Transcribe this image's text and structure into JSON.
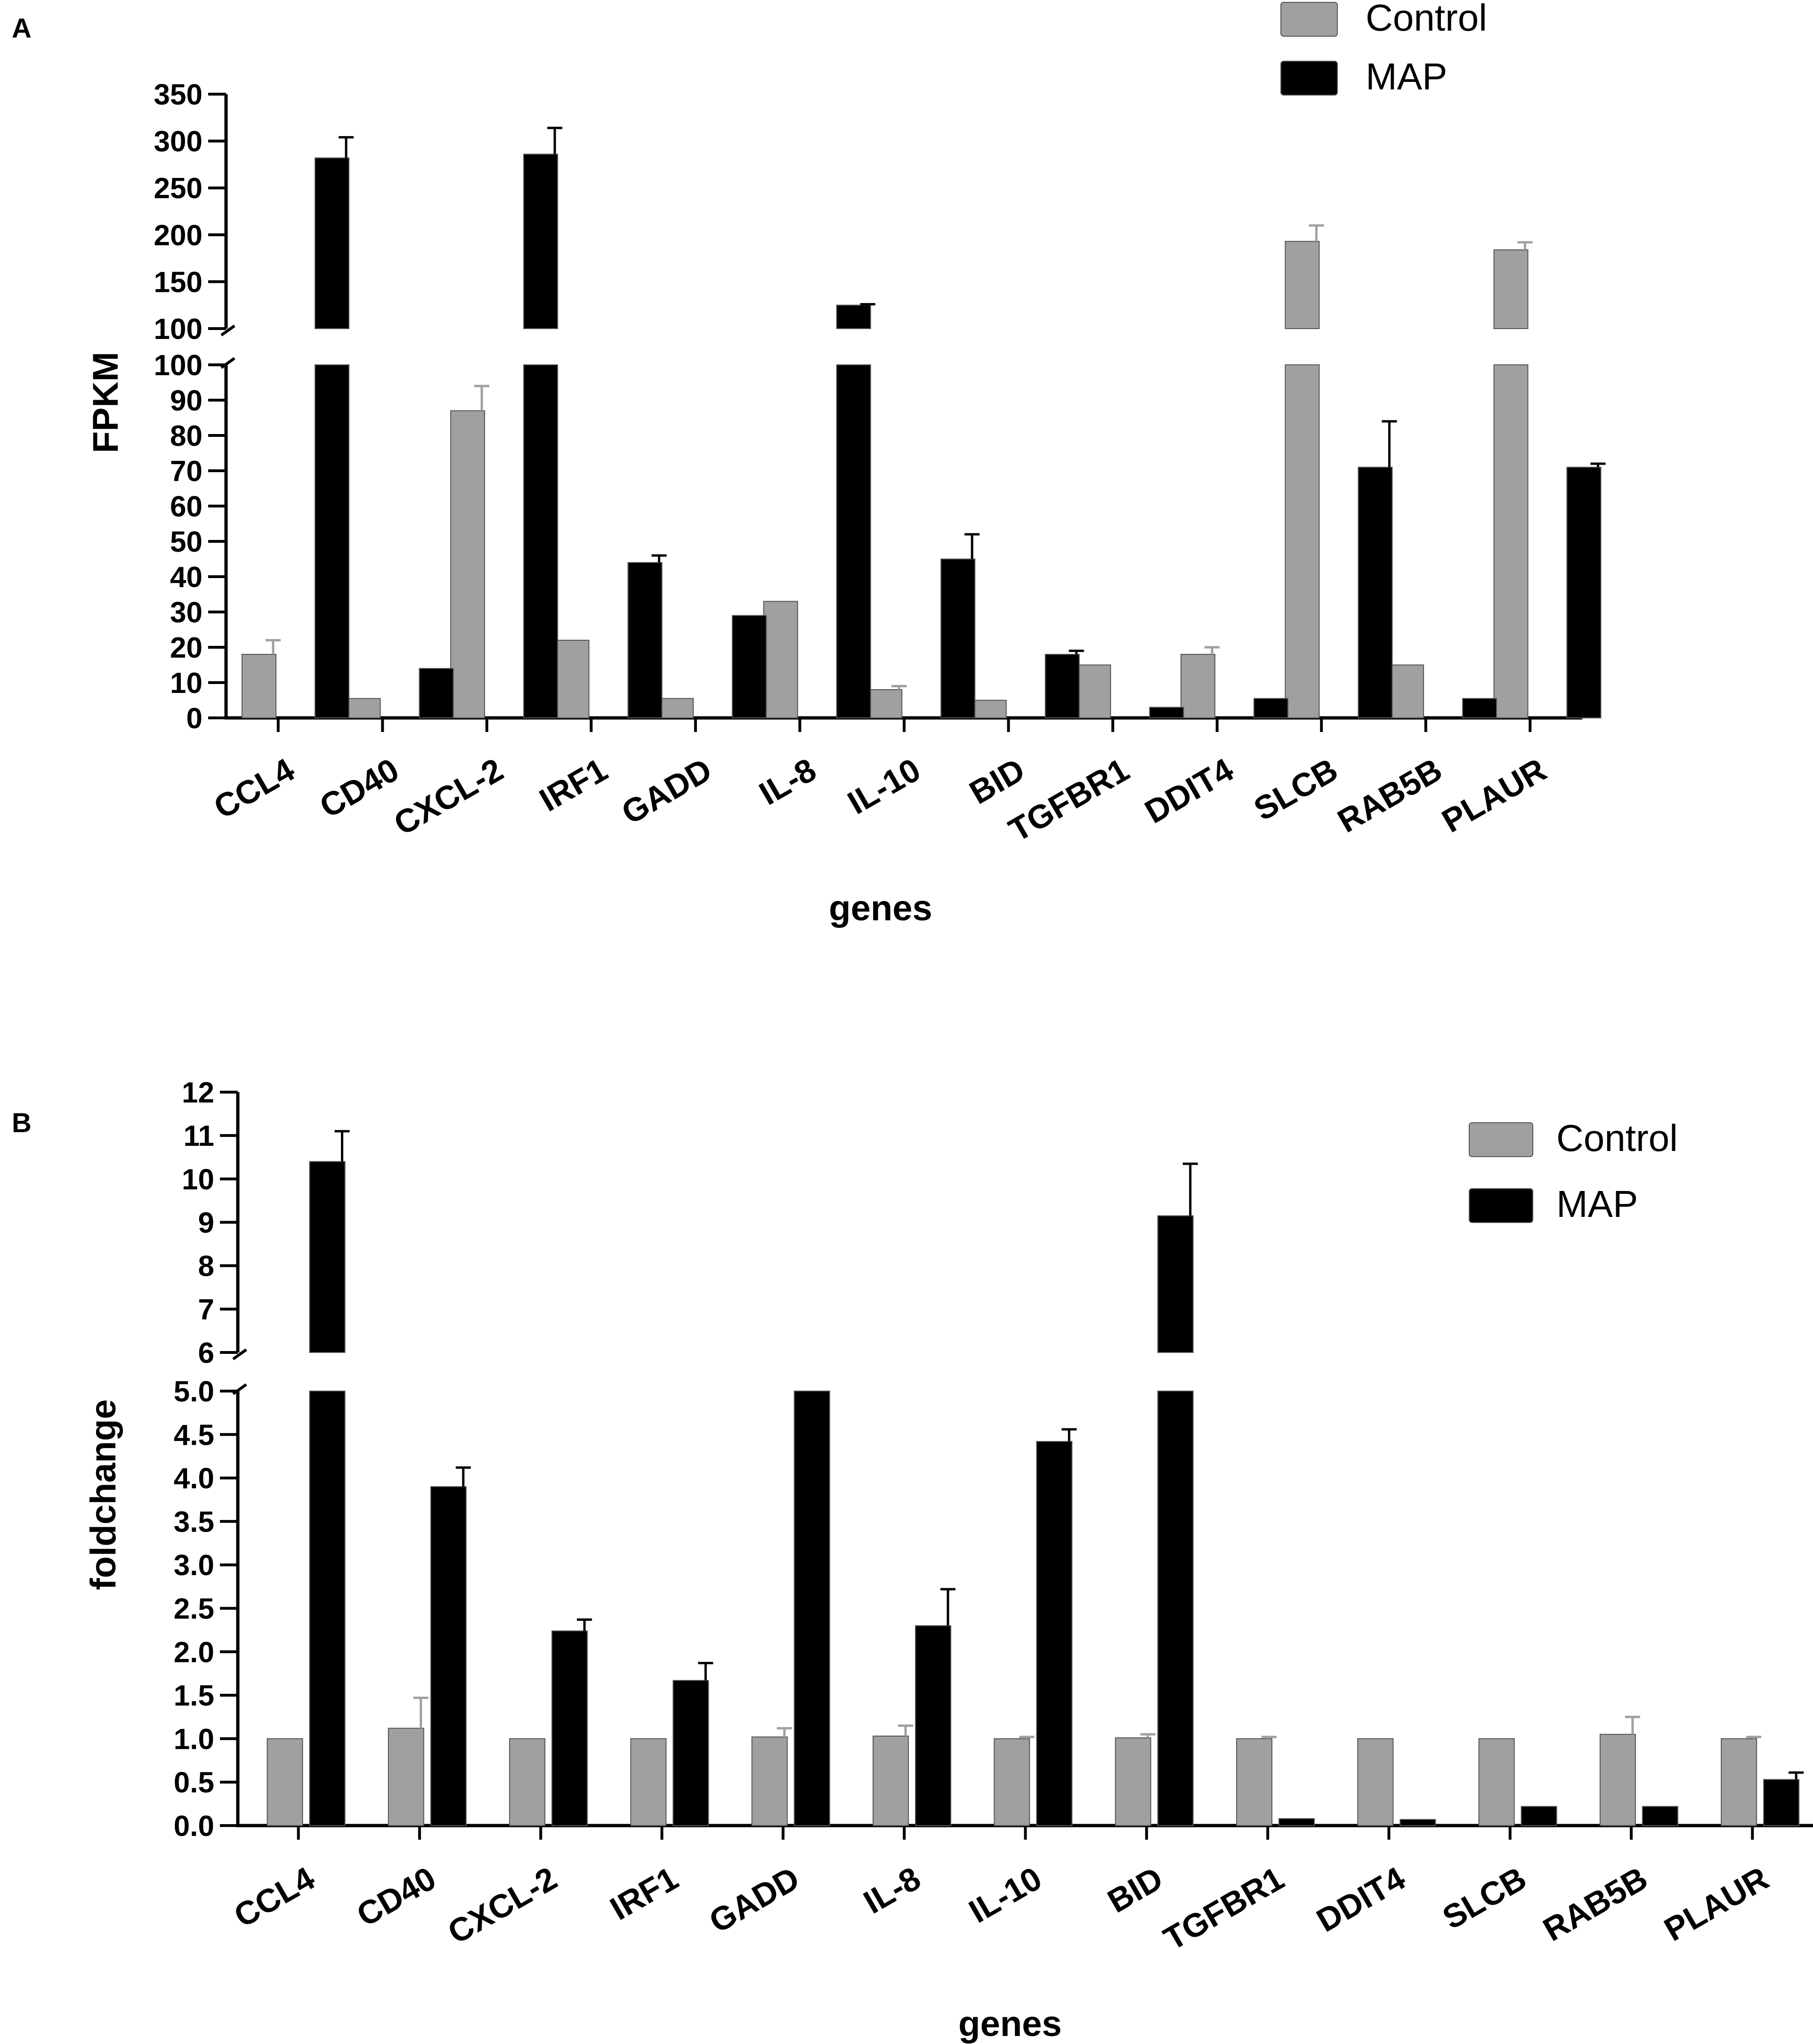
{
  "chart_data": [
    {
      "panel": "A",
      "type": "bar",
      "title": "",
      "xlabel": "genes",
      "ylabel": "FPKM",
      "categories": [
        "CCL4",
        "CD40",
        "CXCL-2",
        "IRF1",
        "GADD",
        "IL-8",
        "IL-10",
        "BID",
        "TGFBR1",
        "DDIT4",
        "SLCB",
        "RAB5B",
        "PLAUR"
      ],
      "series": [
        {
          "name": "Control",
          "color": "#a0a0a0",
          "values": [
            18,
            5.5,
            87,
            22,
            5.5,
            33,
            8,
            5,
            15,
            18,
            193,
            15,
            184
          ],
          "errors": [
            4,
            0,
            7,
            0,
            0,
            0,
            1,
            0,
            0,
            2,
            17,
            0,
            8
          ]
        },
        {
          "name": "MAP",
          "color": "#000000",
          "values": [
            282,
            14,
            286,
            44,
            29,
            125,
            45,
            18,
            3,
            5.5,
            71,
            5.5,
            71
          ],
          "errors": [
            22,
            0,
            28,
            2,
            0,
            1,
            7,
            1,
            0,
            0,
            13,
            0,
            1
          ]
        }
      ],
      "y_break": {
        "lower": [
          0,
          100
        ],
        "upper": [
          100,
          350
        ]
      },
      "lower_ticks": [
        "0",
        "10",
        "20",
        "30",
        "40",
        "50",
        "60",
        "70",
        "80",
        "90",
        "100"
      ],
      "upper_ticks": [
        "100",
        "150",
        "200",
        "250",
        "300",
        "350"
      ],
      "legend_position": "top-right"
    },
    {
      "panel": "B",
      "type": "bar",
      "title": "",
      "xlabel": "genes",
      "ylabel": "foldchange",
      "categories": [
        "CCL4",
        "CD40",
        "CXCL-2",
        "IRF1",
        "GADD",
        "IL-8",
        "IL-10",
        "BID",
        "TGFBR1",
        "DDIT4",
        "SLCB",
        "RAB5B",
        "PLAUR"
      ],
      "series": [
        {
          "name": "Control",
          "color": "#a0a0a0",
          "values": [
            1.0,
            1.12,
            1.0,
            1.0,
            1.02,
            1.03,
            1.0,
            1.01,
            1.0,
            1.0,
            1.0,
            1.05,
            1.0
          ],
          "errors": [
            0,
            0.35,
            0,
            0,
            0.1,
            0.12,
            0.02,
            0.04,
            0.02,
            0,
            0,
            0.2,
            0.02
          ]
        },
        {
          "name": "MAP",
          "color": "#000000",
          "values": [
            10.4,
            3.9,
            2.24,
            1.67,
            5.0,
            2.3,
            4.42,
            9.15,
            0.08,
            0.07,
            0.22,
            0.22,
            0.53
          ],
          "errors": [
            0.7,
            0.22,
            0.13,
            0.2,
            0,
            0.42,
            0.14,
            1.2,
            0,
            0,
            0,
            0,
            0.08
          ]
        }
      ],
      "y_break": {
        "lower": [
          0,
          5
        ],
        "upper": [
          6,
          12
        ]
      },
      "lower_ticks": [
        "0.0",
        "0.5",
        "1.0",
        "1.5",
        "2.0",
        "2.5",
        "3.0",
        "3.5",
        "4.0",
        "4.5",
        "5.0"
      ],
      "upper_ticks": [
        "6",
        "7",
        "8",
        "9",
        "10",
        "11",
        "12"
      ],
      "legend_position": "top-right"
    }
  ]
}
